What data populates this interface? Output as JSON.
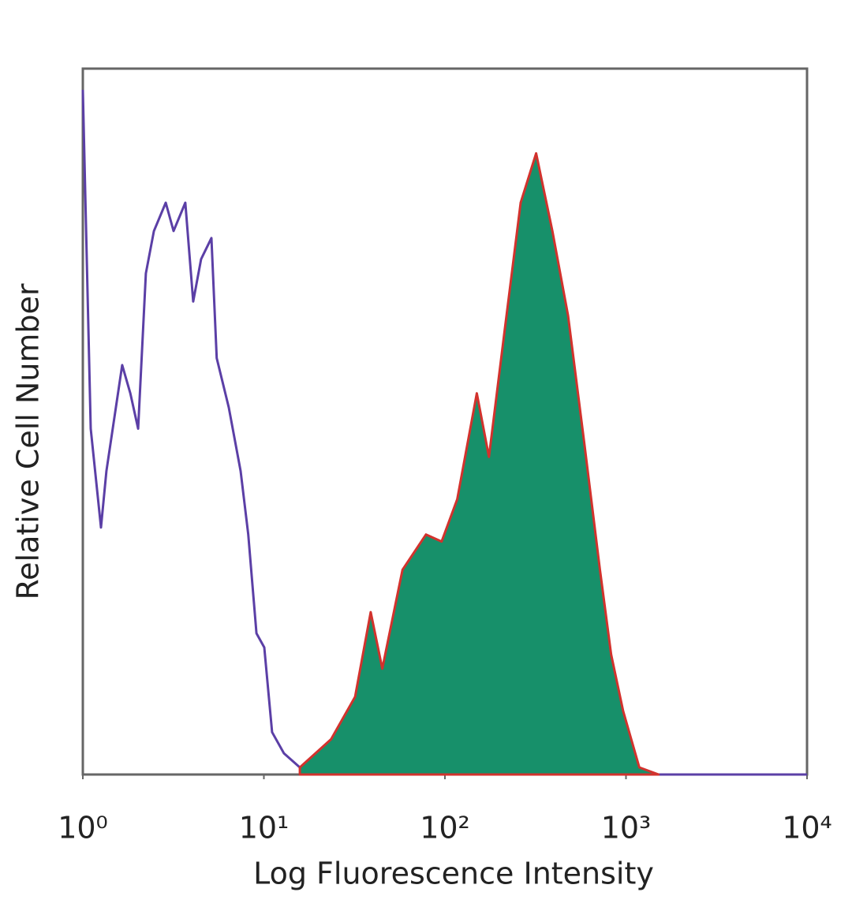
{
  "chart_data": {
    "type": "histogram-overlay",
    "xlabel": "Log Fluorescence Intensity",
    "ylabel": "Relative Cell Number",
    "xscale": "log",
    "xlim": [
      1,
      10000
    ],
    "ylim": [
      0,
      100
    ],
    "xticks": [
      {
        "value": 1,
        "label": "10⁰"
      },
      {
        "value": 10,
        "label": "10¹"
      },
      {
        "value": 100,
        "label": "10²"
      },
      {
        "value": 1000,
        "label": "10³"
      },
      {
        "value": 10000,
        "label": "10⁴"
      }
    ],
    "series": [
      {
        "color": "#5b3fa6",
        "x": [
          1,
          1.105,
          1.26,
          1.35,
          1.65,
          1.83,
          2.02,
          2.23,
          2.47,
          2.87,
          3.17,
          3.68,
          4.07,
          4.5,
          5.13,
          5.49,
          6.4,
          7.44,
          8.2,
          9.1,
          10.05,
          11.1,
          12.9,
          15.8,
          19.3,
          10000
        ],
        "values": [
          97,
          49,
          35,
          43,
          58,
          54,
          49,
          71,
          77,
          81,
          77,
          81,
          67,
          73,
          76,
          59,
          52,
          43,
          34,
          20,
          18,
          6,
          3,
          1,
          0,
          0
        ]
      },
      {
        "color": "#d2322d",
        "fill": "#17906a",
        "x": [
          15.8,
          23.5,
          31.9,
          38.9,
          45.1,
          58.3,
          78.6,
          95.9,
          117,
          150,
          175,
          214,
          262,
          319,
          392,
          479,
          588,
          718,
          828,
          965,
          1185,
          1514
        ],
        "values": [
          1,
          5,
          11,
          23,
          15,
          29,
          34,
          33,
          39,
          54,
          45,
          63,
          81,
          88,
          77,
          65,
          47,
          29,
          17,
          9,
          1,
          0
        ]
      }
    ]
  }
}
